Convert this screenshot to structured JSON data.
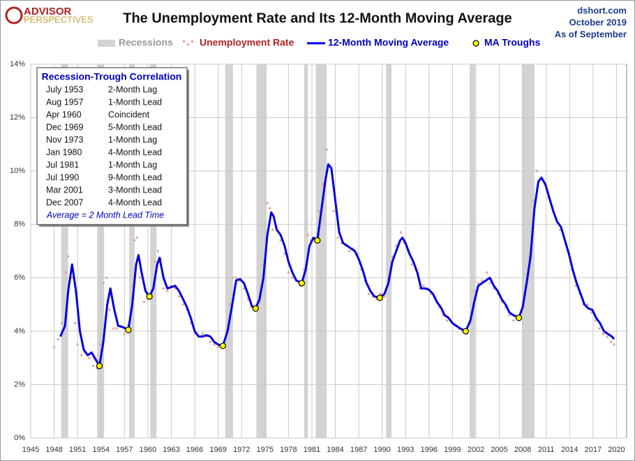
{
  "chart_data": {
    "type": "line",
    "title": "The Unemployment Rate and Its 12-Month Moving Average",
    "logo": [
      "ADVISOR",
      "PERSPECTIVES"
    ],
    "source": "dshort.com",
    "date": "October 2019",
    "note": "As of September",
    "xlim": [
      1945,
      2021.3
    ],
    "xticks": [
      1945,
      1948,
      1951,
      1954,
      1957,
      1960,
      1963,
      1966,
      1969,
      1972,
      1975,
      1978,
      1981,
      1984,
      1987,
      1990,
      1993,
      1996,
      1999,
      2002,
      2005,
      2008,
      2011,
      2014,
      2017,
      2020
    ],
    "ylim": [
      0,
      14
    ],
    "yticks": [
      {
        "value": 0,
        "label": "0%"
      },
      {
        "value": 2,
        "label": "2%"
      },
      {
        "value": 4,
        "label": "4%"
      },
      {
        "value": 6,
        "label": "6%"
      },
      {
        "value": 8,
        "label": "8%"
      },
      {
        "value": 10,
        "label": "10%"
      },
      {
        "value": 12,
        "label": "12%"
      },
      {
        "value": 14,
        "label": "14%"
      }
    ],
    "grid": true,
    "series": [
      {
        "name": "Recessions",
        "type": "band",
        "color": "#d3d3d3",
        "spans": [
          [
            1948.9,
            1949.8
          ],
          [
            1953.5,
            1954.4
          ],
          [
            1957.6,
            1958.3
          ],
          [
            1960.3,
            1961.1
          ],
          [
            1969.9,
            1970.9
          ],
          [
            1973.9,
            1975.2
          ],
          [
            1980.0,
            1980.5
          ],
          [
            1981.5,
            1982.9
          ],
          [
            1990.5,
            1991.2
          ],
          [
            2001.2,
            2001.9
          ],
          [
            2007.9,
            2009.5
          ]
        ]
      },
      {
        "name": "Unemployment Rate",
        "type": "scatter",
        "color": "#e8a0a0",
        "x": [
          1948.0,
          1948.5,
          1949.0,
          1949.5,
          1949.8,
          1950.3,
          1950.7,
          1951.0,
          1951.5,
          1952.0,
          1952.5,
          1953.0,
          1953.5,
          1953.9,
          1954.3,
          1954.7,
          1955.1,
          1955.6,
          1956.0,
          1956.5,
          1957.0,
          1957.5,
          1957.9,
          1958.3,
          1958.6,
          1959.0,
          1959.5,
          1960.0,
          1960.5,
          1960.9,
          1961.3,
          1961.7,
          1962.0,
          1962.5,
          1963.0,
          1963.5,
          1964.0,
          1964.5,
          1965.0,
          1965.5,
          1966.0,
          1966.5,
          1967.0,
          1967.5,
          1968.0,
          1968.5,
          1969.0,
          1969.5,
          1970.0,
          1970.5,
          1970.9,
          1971.3,
          1971.8,
          1972.3,
          1972.8,
          1973.3,
          1973.8,
          1974.3,
          1974.8,
          1975.3,
          1975.6,
          1976.0,
          1976.5,
          1977.0,
          1977.5,
          1978.0,
          1978.5,
          1979.0,
          1979.5,
          1980.0,
          1980.5,
          1980.9,
          1981.4,
          1981.9,
          1982.4,
          1982.9,
          1983.3,
          1983.8,
          1984.3,
          1984.8,
          1985.3,
          1985.8,
          1986.3,
          1986.8,
          1987.3,
          1987.8,
          1988.3,
          1988.8,
          1989.3,
          1989.8,
          1990.3,
          1990.8,
          1991.3,
          1991.8,
          1992.4,
          1992.8,
          1993.3,
          1993.8,
          1994.3,
          1994.8,
          1995.3,
          1995.8,
          1996.3,
          1996.8,
          1997.3,
          1997.8,
          1998.3,
          1998.8,
          1999.3,
          1999.8,
          2000.3,
          2000.8,
          2001.3,
          2001.8,
          2002.3,
          2002.8,
          2003.4,
          2003.8,
          2004.3,
          2004.8,
          2005.3,
          2005.8,
          2006.3,
          2006.8,
          2007.3,
          2007.8,
          2008.3,
          2008.8,
          2009.3,
          2009.8,
          2010.3,
          2010.8,
          2011.3,
          2011.8,
          2012.3,
          2012.8,
          2013.3,
          2013.8,
          2014.3,
          2014.8,
          2015.3,
          2015.8,
          2016.3,
          2016.8,
          2017.3,
          2017.8,
          2018.3,
          2018.8,
          2019.3,
          2019.7
        ],
        "values": [
          3.4,
          3.7,
          4.3,
          6.2,
          6.8,
          6.0,
          4.3,
          3.5,
          3.1,
          3.2,
          3.0,
          2.7,
          2.6,
          3.5,
          5.8,
          6.0,
          4.8,
          4.1,
          4.1,
          4.2,
          3.9,
          4.2,
          5.2,
          7.4,
          7.5,
          6.0,
          5.1,
          5.2,
          5.5,
          6.6,
          7.0,
          6.7,
          5.6,
          5.5,
          5.7,
          5.6,
          5.3,
          5.0,
          4.8,
          4.3,
          3.9,
          3.8,
          3.9,
          3.8,
          3.6,
          3.5,
          3.4,
          3.5,
          4.0,
          5.0,
          6.0,
          6.0,
          5.9,
          5.6,
          5.2,
          4.9,
          4.8,
          5.1,
          6.5,
          8.8,
          8.6,
          7.8,
          7.8,
          7.4,
          6.9,
          6.2,
          6.0,
          5.9,
          5.7,
          6.3,
          7.6,
          7.4,
          7.4,
          8.5,
          9.5,
          10.8,
          10.2,
          8.5,
          7.5,
          7.3,
          7.2,
          7.0,
          7.1,
          6.9,
          6.3,
          5.9,
          5.4,
          5.3,
          5.2,
          5.4,
          5.3,
          6.0,
          6.8,
          7.2,
          7.7,
          7.3,
          7.0,
          6.5,
          6.3,
          5.6,
          5.7,
          5.6,
          5.4,
          5.3,
          4.9,
          4.6,
          4.4,
          4.4,
          4.2,
          4.1,
          4.0,
          3.9,
          4.3,
          5.5,
          5.8,
          5.9,
          6.2,
          5.8,
          5.6,
          5.4,
          5.1,
          4.9,
          4.6,
          4.4,
          4.5,
          4.7,
          5.4,
          6.8,
          8.9,
          10.0,
          9.7,
          9.5,
          9.0,
          8.6,
          8.2,
          7.8,
          7.5,
          7.0,
          6.3,
          5.7,
          5.4,
          5.0,
          5.0,
          4.7,
          4.4,
          4.1,
          3.9,
          3.8,
          3.6,
          3.5
        ]
      },
      {
        "name": "12-Month Moving Average",
        "type": "line",
        "color": "#0000e0",
        "x": [
          1948.8,
          1949.4,
          1949.8,
          1950.3,
          1950.8,
          1951.3,
          1951.8,
          1952.3,
          1952.8,
          1953.3,
          1953.8,
          1954.3,
          1954.8,
          1955.2,
          1955.7,
          1956.2,
          1956.8,
          1957.5,
          1958.0,
          1958.5,
          1958.8,
          1959.2,
          1959.7,
          1960.2,
          1960.7,
          1961.2,
          1961.5,
          1962.0,
          1962.5,
          1963.0,
          1963.5,
          1964.0,
          1964.5,
          1965.0,
          1965.5,
          1966.0,
          1966.5,
          1967.0,
          1967.5,
          1968.0,
          1968.5,
          1969.0,
          1969.6,
          1970.2,
          1970.8,
          1971.3,
          1971.8,
          1972.3,
          1972.8,
          1973.3,
          1973.8,
          1974.3,
          1974.8,
          1975.3,
          1975.8,
          1976.1,
          1976.5,
          1977.0,
          1977.5,
          1978.0,
          1978.5,
          1979.0,
          1979.7,
          1980.2,
          1980.7,
          1981.2,
          1981.7,
          1982.2,
          1982.7,
          1983.1,
          1983.5,
          1984.0,
          1984.5,
          1985.0,
          1985.5,
          1986.0,
          1986.5,
          1987.0,
          1987.5,
          1988.0,
          1988.5,
          1989.0,
          1989.7,
          1990.3,
          1990.8,
          1991.3,
          1991.8,
          1992.3,
          1992.6,
          1993.0,
          1993.5,
          1994.0,
          1994.5,
          1995.0,
          1995.5,
          1996.0,
          1996.5,
          1997.0,
          1997.5,
          1998.0,
          1998.5,
          1999.0,
          1999.5,
          2000.0,
          2000.7,
          2001.3,
          2001.8,
          2002.3,
          2002.8,
          2003.3,
          2003.8,
          2004.3,
          2004.8,
          2005.3,
          2005.8,
          2006.3,
          2006.8,
          2007.5,
          2008.0,
          2008.5,
          2009.0,
          2009.5,
          2010.0,
          2010.4,
          2010.9,
          2011.4,
          2011.9,
          2012.4,
          2012.9,
          2013.4,
          2013.9,
          2014.4,
          2014.9,
          2015.4,
          2015.9,
          2016.4,
          2016.9,
          2017.4,
          2017.9,
          2018.4,
          2018.9,
          2019.4,
          2019.7
        ],
        "values": [
          3.8,
          4.2,
          5.5,
          6.5,
          5.5,
          4.0,
          3.3,
          3.1,
          3.2,
          2.95,
          2.7,
          3.6,
          5.0,
          5.6,
          4.8,
          4.2,
          4.15,
          4.05,
          5.0,
          6.5,
          6.85,
          6.2,
          5.5,
          5.3,
          5.6,
          6.5,
          6.75,
          6.0,
          5.6,
          5.65,
          5.7,
          5.5,
          5.2,
          4.9,
          4.5,
          4.0,
          3.8,
          3.8,
          3.85,
          3.8,
          3.6,
          3.5,
          3.45,
          4.0,
          5.0,
          5.9,
          5.95,
          5.8,
          5.4,
          4.95,
          4.85,
          5.2,
          6.0,
          7.6,
          8.45,
          8.3,
          7.8,
          7.6,
          7.2,
          6.6,
          6.2,
          5.9,
          5.8,
          6.3,
          7.2,
          7.5,
          7.4,
          8.5,
          9.6,
          10.25,
          10.1,
          8.9,
          7.7,
          7.3,
          7.2,
          7.1,
          7.0,
          6.7,
          6.3,
          5.8,
          5.5,
          5.3,
          5.25,
          5.4,
          5.8,
          6.6,
          7.0,
          7.4,
          7.5,
          7.3,
          6.9,
          6.6,
          6.2,
          5.6,
          5.6,
          5.55,
          5.4,
          5.1,
          4.9,
          4.6,
          4.5,
          4.3,
          4.2,
          4.1,
          4.0,
          4.4,
          5.1,
          5.7,
          5.8,
          5.9,
          6.0,
          5.7,
          5.5,
          5.2,
          5.0,
          4.7,
          4.6,
          4.5,
          4.9,
          5.8,
          6.8,
          8.6,
          9.6,
          9.75,
          9.5,
          9.0,
          8.5,
          8.1,
          7.9,
          7.4,
          6.9,
          6.3,
          5.8,
          5.4,
          5.0,
          4.85,
          4.8,
          4.5,
          4.3,
          4.0,
          3.9,
          3.8,
          3.7
        ]
      },
      {
        "name": "MA Troughs",
        "type": "troughs",
        "color": "#ffff00",
        "x": [
          1953.8,
          1957.5,
          1960.2,
          1969.6,
          1973.8,
          1979.7,
          1981.7,
          1989.7,
          2000.7,
          2007.5
        ],
        "values": [
          2.7,
          4.05,
          5.3,
          3.45,
          4.85,
          5.8,
          7.4,
          5.25,
          4.0,
          4.5
        ]
      }
    ],
    "annotation": {
      "title": "Recession-Trough Correlation",
      "rows": [
        [
          "July 1953",
          "2-Month Lag"
        ],
        [
          "Aug 1957",
          "1-Month Lead"
        ],
        [
          "Apr 1960",
          "Coincident"
        ],
        [
          "Dec 1969",
          "5-Month Lead"
        ],
        [
          "Nov 1973",
          "1-Month Lag"
        ],
        [
          "Jan 1980",
          "4-Month Lead"
        ],
        [
          "Jul 1981",
          "1-Month Lag"
        ],
        [
          "Jul 1990",
          "9-Month Lead"
        ],
        [
          "Mar 2001",
          "3-Month Lead"
        ],
        [
          "Dec 2007",
          "4-Month Lead"
        ]
      ],
      "footer": "Average = 2 Month Lead Time"
    }
  }
}
